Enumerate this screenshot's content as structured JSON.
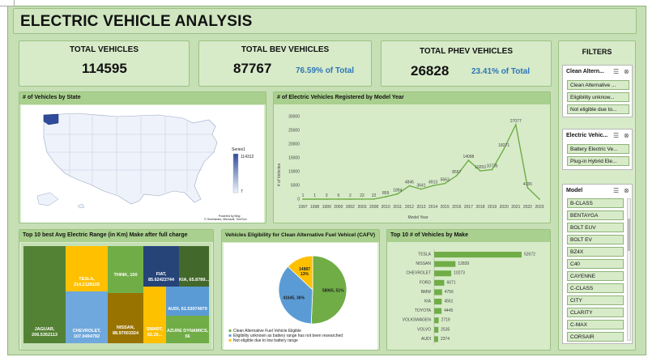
{
  "dashboard": {
    "title": "ELECTRIC VEHICLE ANALYSIS"
  },
  "kpis": {
    "total": {
      "label": "TOTAL VEHICLES",
      "value": "114595"
    },
    "bev": {
      "label": "TOTAL BEV VEHICLES",
      "value": "87767",
      "pct": "76.59% of Total"
    },
    "phev": {
      "label": "TOTAL PHEV VEHICLES",
      "value": "26828",
      "pct": "23.41% of Total"
    }
  },
  "map_panel": {
    "title": "# of Vehicles by State",
    "legend_series": "Series1",
    "legend_max": "114312",
    "legend_min": "7",
    "credit1": "Powered by Bing",
    "credit2": "© GeoNames, Microsoft, TomTom"
  },
  "line_panel": {
    "title": "# of Electric Vehicles Registered by Model Year",
    "ylabel": "# of Vehicles",
    "xlabel": "Model Year"
  },
  "treemap_panel": {
    "title": "Top 10 best Avg Electric Range (in Km) Make after full charge",
    "cells": [
      {
        "label": "JAGUAR, 206.5352113",
        "color": "#548235"
      },
      {
        "label": "TESLA, 214.2128165",
        "color": "#ffc000"
      },
      {
        "label": "CHEVROLET, 107.9494792",
        "color": "#6fa8dc"
      },
      {
        "label": "THINK, 100",
        "color": "#70ad47"
      },
      {
        "label": "NISSAN, 88.97003324",
        "color": "#997300"
      },
      {
        "label": "FIAT, 85.62422744",
        "color": "#264478"
      },
      {
        "label": "KIA, 65.8789...",
        "color": "#43682b"
      },
      {
        "label": "SMART, 62.29...",
        "color": "#ffc000"
      },
      {
        "label": "AUDI, 61.53074979",
        "color": "#5b9bd5"
      },
      {
        "label": "AZURE DYNAMICS, 56",
        "color": "#70ad47"
      }
    ]
  },
  "pie_panel": {
    "title": "Vehicles Eligibility for Clean Alternative Fuel Vehicel (CAFV)",
    "slices": [
      {
        "label": "58065, 51%",
        "value": 58065,
        "color": "#70ad47",
        "legend": "Clean Alternative Fuel Vehicle Eligible"
      },
      {
        "label": "41645, 36%",
        "value": 41645,
        "color": "#5b9bd5",
        "legend": "Eligibility unknown as battery range has not been researched"
      },
      {
        "label": "14887, 13%",
        "value": 14887,
        "color": "#ffc000",
        "legend": "Not eligible due to low battery range"
      }
    ]
  },
  "make_panel": {
    "title": "Top 10 # of Vehicles by Make"
  },
  "filters": {
    "title": "FILTERS",
    "slicer1": {
      "title": "Clean Altern...",
      "items": [
        "Clean Alternative ...",
        "Eligibility unknow...",
        "Not eligible due to..."
      ]
    },
    "slicer2": {
      "title": "Electric Vehic...",
      "items": [
        "Battery Electric Ve...",
        "Plug-in Hybrid Ele..."
      ]
    },
    "slicer3": {
      "title": "Model",
      "items": [
        "B-CLASS",
        "BENTAYGA",
        "BOLT EUV",
        "BOLT EV",
        "BZ4X",
        "C40",
        "CAYENNE",
        "C-CLASS",
        "CITY",
        "CLARITY",
        "C-MAX",
        "CORSAIR"
      ]
    }
  },
  "chart_data": [
    {
      "type": "line",
      "x": [
        "1997",
        "1998",
        "1999",
        "2000",
        "2002",
        "2003",
        "2008",
        "2010",
        "2011",
        "2012",
        "2013",
        "2014",
        "2015",
        "2016",
        "2017",
        "2018",
        "2019",
        "2020",
        "2021",
        "2022",
        "2023"
      ],
      "values": [
        1,
        1,
        3,
        9,
        2,
        22,
        22,
        859,
        1894,
        4846,
        3641,
        4913,
        5663,
        8557,
        14098,
        10253,
        10735,
        18271,
        27077,
        4155,
        0
      ],
      "point_labels": [
        "1",
        "1",
        "3",
        "9",
        "2",
        "22",
        "22",
        "859",
        "1894",
        "4846",
        "3641",
        "4913",
        "5663",
        "8557",
        "14098",
        "10253",
        "10735",
        "18271",
        "27077",
        "4155",
        ""
      ],
      "ylabel": "# of Vehicles",
      "xlabel": "Model Year",
      "yticks": [
        "0",
        "5000",
        "10000",
        "15000",
        "20000",
        "25000",
        "30000"
      ],
      "ylim": [
        0,
        30000
      ],
      "color": "#70ad47"
    },
    {
      "type": "pie",
      "categories": [
        "Clean Alternative Fuel Vehicle Eligible",
        "Eligibility unknown as battery range has not been researched",
        "Not eligible due to low battery range"
      ],
      "values": [
        58065,
        41645,
        14887
      ]
    },
    {
      "type": "bar",
      "categories": [
        "TESLA",
        "NISSAN",
        "CHEVROLET",
        "FORD",
        "BMW",
        "KIA",
        "TOYOTA",
        "VOLKSWAGEN",
        "VOLVO",
        "AUDI"
      ],
      "values": [
        52672,
        12839,
        10273,
        6071,
        4756,
        4561,
        4445,
        2719,
        2535,
        2374
      ],
      "color": "#70ad47"
    },
    {
      "type": "treemap",
      "categories": [
        "JAGUAR",
        "TESLA",
        "CHEVROLET",
        "THINK",
        "NISSAN",
        "FIAT",
        "KIA",
        "SMART",
        "AUDI",
        "AZURE DYNAMICS"
      ],
      "values": [
        206.5352113,
        214.2128165,
        107.9494792,
        100,
        88.97003324,
        85.62422744,
        65.8789,
        62.29,
        61.53074979,
        56
      ]
    }
  ]
}
